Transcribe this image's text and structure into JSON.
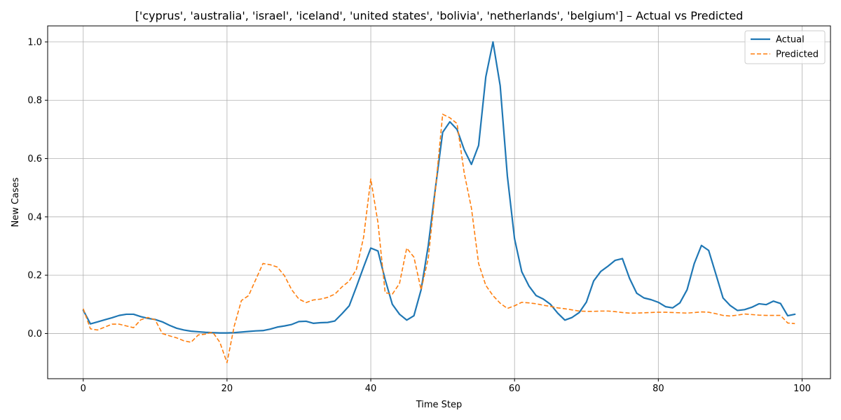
{
  "chart_data": {
    "type": "line",
    "title": "['cyprus', 'australia', 'israel', 'iceland', 'united states', 'bolivia', 'netherlands', 'belgium'] – Actual vs Predicted",
    "xlabel": "Time Step",
    "ylabel": "New Cases",
    "xlim": [
      -4.95,
      103.95
    ],
    "ylim": [
      -0.155,
      1.055
    ],
    "xticks": [
      0,
      20,
      40,
      60,
      80,
      100
    ],
    "yticks": [
      0.0,
      0.2,
      0.4,
      0.6,
      0.8,
      1.0
    ],
    "xtick_labels": [
      "0",
      "20",
      "40",
      "60",
      "80",
      "100"
    ],
    "ytick_labels": [
      "0.0",
      "0.2",
      "0.4",
      "0.6",
      "0.8",
      "1.0"
    ],
    "grid": true,
    "legend_position": "upper right",
    "series": [
      {
        "name": "Actual",
        "color": "#1f77b4",
        "style": "solid",
        "values": [
          0.08,
          0.033,
          0.04,
          0.047,
          0.054,
          0.062,
          0.066,
          0.066,
          0.058,
          0.052,
          0.048,
          0.04,
          0.028,
          0.018,
          0.012,
          0.008,
          0.006,
          0.004,
          0.003,
          0.002,
          0.002,
          0.003,
          0.005,
          0.007,
          0.009,
          0.01,
          0.015,
          0.022,
          0.026,
          0.031,
          0.041,
          0.042,
          0.035,
          0.037,
          0.038,
          0.043,
          0.068,
          0.095,
          0.16,
          0.228,
          0.293,
          0.283,
          0.185,
          0.1,
          0.066,
          0.046,
          0.061,
          0.15,
          0.302,
          0.5,
          0.69,
          0.726,
          0.7,
          0.63,
          0.58,
          0.645,
          0.88,
          1.0,
          0.85,
          0.54,
          0.325,
          0.212,
          0.163,
          0.13,
          0.118,
          0.1,
          0.07,
          0.046,
          0.055,
          0.072,
          0.108,
          0.18,
          0.213,
          0.231,
          0.251,
          0.257,
          0.189,
          0.138,
          0.122,
          0.116,
          0.107,
          0.092,
          0.088,
          0.105,
          0.15,
          0.24,
          0.302,
          0.285,
          0.204,
          0.122,
          0.096,
          0.079,
          0.082,
          0.09,
          0.102,
          0.099,
          0.111,
          0.103,
          0.061,
          0.066
        ]
      },
      {
        "name": "Predicted",
        "color": "#ff7f0e",
        "style": "dashed",
        "values": [
          0.085,
          0.016,
          0.012,
          0.022,
          0.032,
          0.032,
          0.026,
          0.02,
          0.047,
          0.055,
          0.047,
          0.0,
          -0.008,
          -0.015,
          -0.025,
          -0.03,
          -0.005,
          -0.002,
          0.005,
          -0.03,
          -0.1,
          0.025,
          0.113,
          0.13,
          0.185,
          0.24,
          0.236,
          0.228,
          0.198,
          0.15,
          0.118,
          0.106,
          0.115,
          0.118,
          0.124,
          0.135,
          0.16,
          0.18,
          0.22,
          0.33,
          0.53,
          0.38,
          0.14,
          0.135,
          0.172,
          0.293,
          0.262,
          0.15,
          0.258,
          0.495,
          0.752,
          0.74,
          0.72,
          0.55,
          0.43,
          0.24,
          0.165,
          0.13,
          0.104,
          0.086,
          0.095,
          0.107,
          0.105,
          0.102,
          0.097,
          0.093,
          0.088,
          0.085,
          0.081,
          0.077,
          0.076,
          0.076,
          0.077,
          0.077,
          0.075,
          0.072,
          0.07,
          0.07,
          0.071,
          0.072,
          0.073,
          0.073,
          0.072,
          0.071,
          0.07,
          0.072,
          0.074,
          0.073,
          0.068,
          0.062,
          0.06,
          0.063,
          0.067,
          0.065,
          0.063,
          0.062,
          0.062,
          0.062,
          0.036,
          0.034
        ]
      }
    ]
  }
}
